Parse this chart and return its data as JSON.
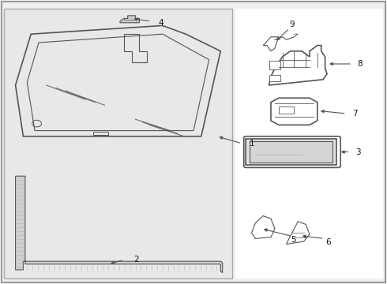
{
  "bg_color": "#f0f0f0",
  "left_panel_color": "#e8e8e8",
  "right_panel_color": "#ffffff",
  "line_color": "#555555",
  "border_color": "#888888",
  "label_color": "#111111",
  "fig_width": 4.9,
  "fig_height": 3.6,
  "dpi": 100
}
